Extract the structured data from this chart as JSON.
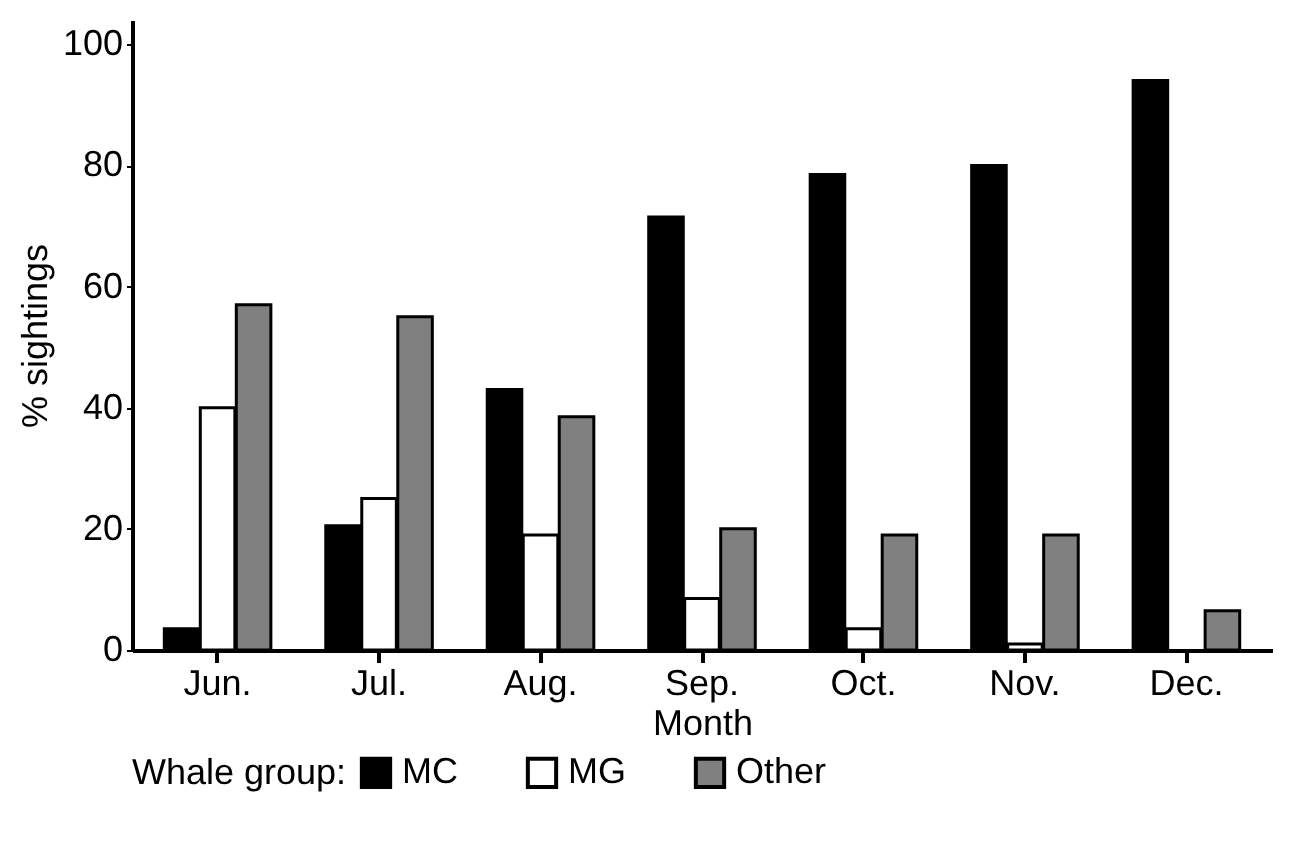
{
  "chart_data": {
    "type": "bar",
    "xlabel": "Month",
    "ylabel": "% sightings",
    "legend_title": "Whale group:",
    "categories": [
      "Jun.",
      "Jul.",
      "Aug.",
      "Sep.",
      "Oct.",
      "Nov.",
      "Dec."
    ],
    "series": [
      {
        "name": "MC",
        "color": "#000000",
        "values": [
          3.5,
          20.5,
          43,
          71.5,
          78.5,
          80,
          94
        ]
      },
      {
        "name": "MG",
        "color": "#ffffff",
        "values": [
          40,
          25,
          19,
          8.5,
          3.5,
          1,
          null
        ]
      },
      {
        "name": "Other",
        "color": "#808080",
        "values": [
          57,
          55,
          38.5,
          20,
          19,
          19,
          6.5
        ]
      }
    ],
    "ylim": [
      0,
      104
    ],
    "yticks": [
      0,
      20,
      40,
      60,
      80,
      100
    ],
    "grid": false,
    "legend": "bottom"
  }
}
